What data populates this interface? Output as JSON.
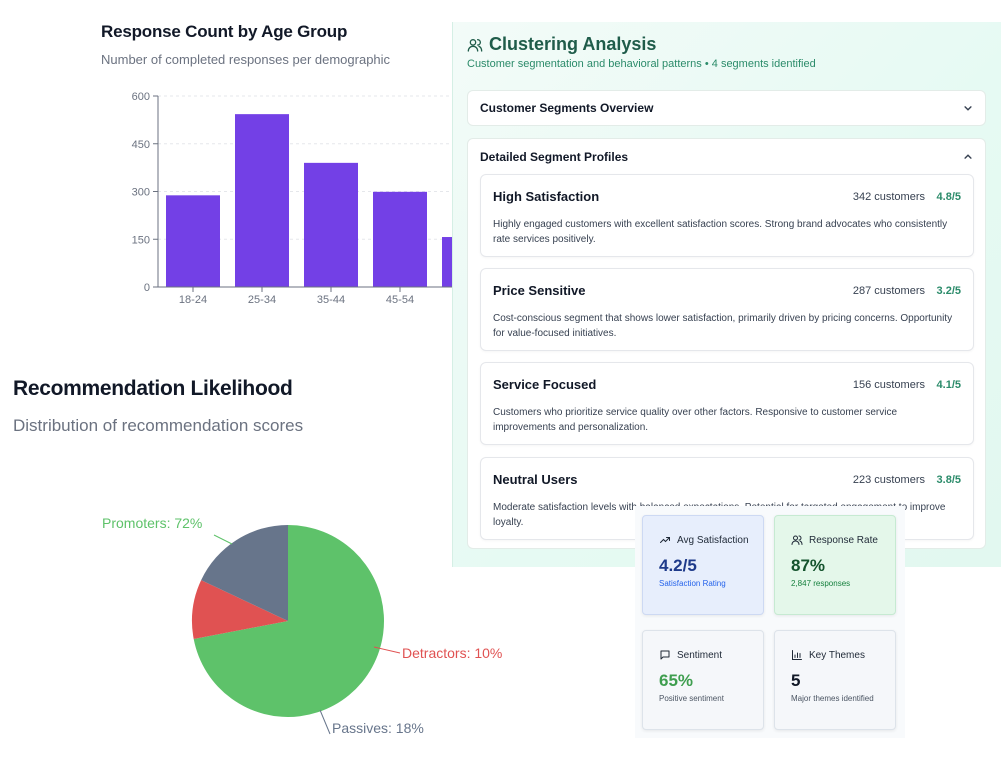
{
  "bar_chart": {
    "title": "Response Count by Age Group",
    "subtitle": "Number of completed responses per demographic"
  },
  "pie_chart": {
    "title": "Recommendation Likelihood",
    "subtitle": "Distribution of recommendation scores"
  },
  "chart_data": [
    {
      "type": "bar",
      "title": "Response Count by Age Group",
      "subtitle": "Number of completed responses per demographic",
      "categories": [
        "18-24",
        "25-34",
        "35-44",
        "45-54",
        ""
      ],
      "values": [
        288,
        543,
        390,
        299,
        157
      ],
      "ylim": [
        0,
        600
      ],
      "yticks": [
        0,
        150,
        300,
        450,
        600
      ],
      "color": "#7340e6",
      "grid": true
    },
    {
      "type": "pie",
      "title": "Recommendation Likelihood",
      "subtitle": "Distribution of recommendation scores",
      "slices": [
        {
          "label": "Promoters: 72%",
          "value": 72,
          "color": "#5ec26a"
        },
        {
          "label": "Detractors: 10%",
          "value": 10,
          "color": "#e05252"
        },
        {
          "label": "Passives: 18%",
          "value": 18,
          "color": "#67758b"
        }
      ]
    }
  ],
  "clustering": {
    "title": "Clustering Analysis",
    "subtitle": "Customer segmentation and behavioral patterns • 4 segments identified",
    "overview_label": "Customer Segments Overview",
    "profiles_label": "Detailed Segment Profiles",
    "segments": [
      {
        "name": "High Satisfaction",
        "count": "342 customers",
        "score": "4.8/5",
        "desc": "Highly engaged customers with excellent satisfaction scores. Strong brand advocates who consistently rate services positively."
      },
      {
        "name": "Price Sensitive",
        "count": "287 customers",
        "score": "3.2/5",
        "desc": "Cost-conscious segment that shows lower satisfaction, primarily driven by pricing concerns. Opportunity for value-focused initiatives."
      },
      {
        "name": "Service Focused",
        "count": "156 customers",
        "score": "4.1/5",
        "desc": "Customers who prioritize service quality over other factors. Responsive to customer service improvements and personalization."
      },
      {
        "name": "Neutral Users",
        "count": "223 customers",
        "score": "3.8/5",
        "desc": "Moderate satisfaction levels with balanced expectations. Potential for targeted engagement to improve loyalty."
      }
    ]
  },
  "metrics": [
    {
      "label": "Avg Satisfaction",
      "value": "4.2/5",
      "caption": "Satisfaction Rating",
      "icon": "trending-up-icon",
      "value_color": "#1e3a8a",
      "caption_color": "#2563eb"
    },
    {
      "label": "Response Rate",
      "value": "87%",
      "caption": "2,847 responses",
      "icon": "users-icon",
      "value_color": "#14532d",
      "caption_color": "#15803d"
    },
    {
      "label": "Sentiment",
      "value": "65%",
      "caption": "Positive sentiment",
      "icon": "message-icon",
      "value_color": "#3f9e4f",
      "caption_color": "#4b5563"
    },
    {
      "label": "Key Themes",
      "value": "5",
      "caption": "Major themes identified",
      "icon": "bar-chart-icon",
      "value_color": "#111827",
      "caption_color": "#4b5563"
    }
  ]
}
